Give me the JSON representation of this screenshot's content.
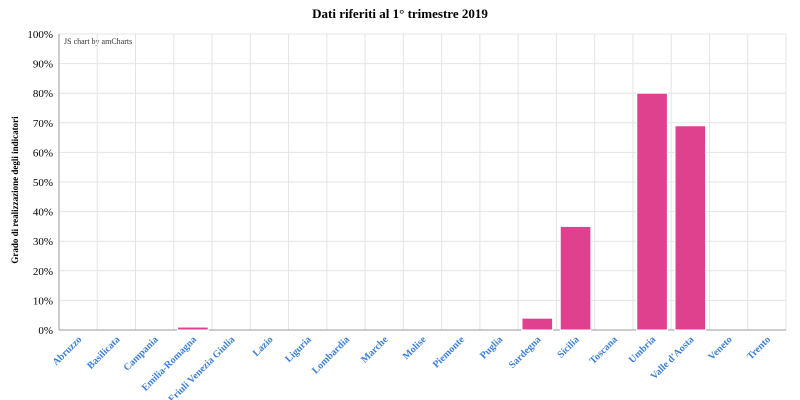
{
  "chart_data": {
    "type": "bar",
    "title": "Dati riferiti al 1° trimestre 2019",
    "ylabel": "Grado di realizzazione degli indicatori",
    "xlabel": "",
    "credit": "JS chart by amCharts",
    "ylim": [
      0,
      100
    ],
    "y_ticks": [
      "0%",
      "10%",
      "20%",
      "30%",
      "40%",
      "50%",
      "60%",
      "70%",
      "80%",
      "90%",
      "100%"
    ],
    "grid": true,
    "categories": [
      "Abruzzo",
      "Basilicata",
      "Campania",
      "Emilia-Romagna",
      "Friuli Venezia Giulia",
      "Lazio",
      "Liguria",
      "Lombardia",
      "Marche",
      "Molise",
      "Piemonte",
      "Puglia",
      "Sardegna",
      "Sicilia",
      "Toscana",
      "Umbria",
      "Valle d'Aosta",
      "Veneto",
      "Trento"
    ],
    "values": [
      0,
      0,
      0,
      1,
      0,
      0,
      0,
      0,
      0,
      0,
      0,
      0,
      4,
      35,
      0,
      80,
      69,
      0,
      0
    ],
    "colors": {
      "bar": "#e0418f",
      "bar_stroke": "#ffffff",
      "category_label": "#3a7fd5",
      "grid": "#e4e4e4",
      "axis": "#999999"
    }
  }
}
